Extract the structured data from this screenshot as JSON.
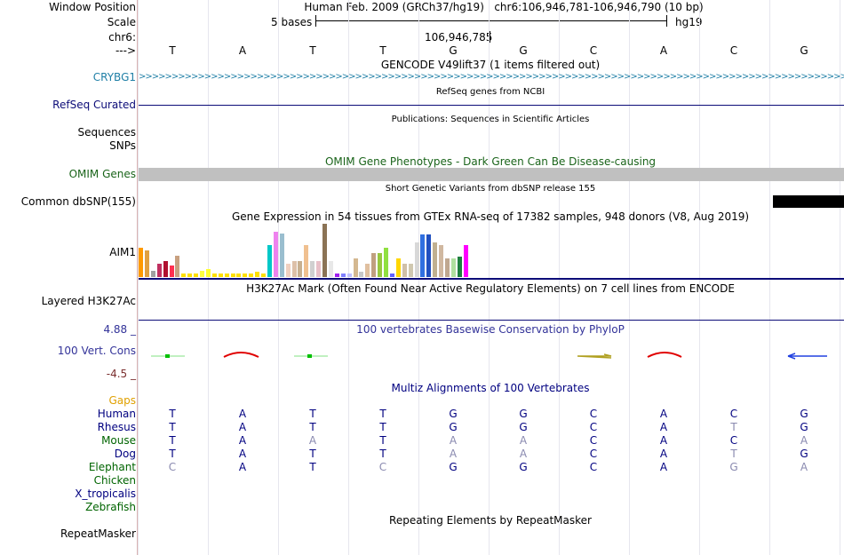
{
  "header": {
    "window_position_label": "Window Position",
    "window_position_value": "Human Feb. 2009 (GRCh37/hg19)   chr6:106,946,781-106,946,790 (10 bp)",
    "scale_label": "Scale",
    "scale_value": "5 bases",
    "scale_db": "hg19",
    "chrom_label": "chr6:",
    "coordinate": "106,946,785",
    "strand_label": "--->"
  },
  "bases": [
    "T",
    "A",
    "T",
    "T",
    "G",
    "G",
    "C",
    "A",
    "C",
    "G"
  ],
  "tracks": {
    "gencode": {
      "title": "GENCODE V49lift37 (1 items filtered out)",
      "label": "CRYBG1",
      "color": "#1f7fa6"
    },
    "refseq": {
      "title": "RefSeq genes from NCBI",
      "label": "RefSeq Curated",
      "color": "#0c0c78"
    },
    "publications": {
      "title": "Publications: Sequences in Scientific Articles",
      "label1": "Sequences",
      "label2": "SNPs"
    },
    "omim": {
      "title": "OMIM Gene Phenotypes - Dark Green Can Be Disease-causing",
      "label": "OMIM Genes",
      "color": "#1a641a"
    },
    "dbsnp": {
      "title": "Short Genetic Variants from dbSNP release 155",
      "label": "Common dbSNP(155)"
    },
    "gtex": {
      "title": "Gene Expression in 54 tissues from GTEx RNA-seq of 17382 samples, 948 donors (V8, Aug 2019)",
      "label": "AIM1",
      "values": [
        0.55,
        0.5,
        0.12,
        0.25,
        0.3,
        0.22,
        0.4,
        0.06,
        0.06,
        0.06,
        0.12,
        0.15,
        0.06,
        0.06,
        0.06,
        0.06,
        0.06,
        0.06,
        0.06,
        0.1,
        0.06,
        0.6,
        0.85,
        0.82,
        0.25,
        0.3,
        0.3,
        0.6,
        0.3,
        0.3,
        1.0,
        0.3,
        0.06,
        0.06,
        0.06,
        0.35,
        0.1,
        0.25,
        0.45,
        0.45,
        0.55,
        0.06,
        0.35,
        0.25,
        0.25,
        0.65,
        0.8,
        0.8,
        0.65,
        0.6,
        0.35,
        0.35,
        0.38,
        0.6
      ],
      "colors": [
        "#ff9a00",
        "#e0a040",
        "#a0a0a0",
        "#c03060",
        "#b01030",
        "#ff3050",
        "#c8a080",
        "#ffe000",
        "#ffe000",
        "#ffe000",
        "#ffff40",
        "#ffff30",
        "#ffe000",
        "#ffe000",
        "#ffe000",
        "#ffe000",
        "#ffe000",
        "#ffe000",
        "#ffe000",
        "#ffe000",
        "#ffe000",
        "#00c8c8",
        "#ee82ee",
        "#9abecf",
        "#f0d0c0",
        "#ddc0a8",
        "#c8b090",
        "#f0c090",
        "#d0d0d0",
        "#e8c0c8",
        "#8b7355",
        "#e8e8e8",
        "#a020f0",
        "#8080ff",
        "#c0c0ff",
        "#d4b890",
        "#c8c8c8",
        "#e0c0a0",
        "#c0a080",
        "#98c840",
        "#90e040",
        "#6060ff",
        "#ffd700",
        "#d0c0a8",
        "#d0c8b0",
        "#d8d8d8",
        "#3070e0",
        "#2050c0",
        "#c0b090",
        "#d0b8a0",
        "#c0a890",
        "#b0e0a0",
        "#208040",
        "#ff00ff"
      ]
    },
    "h3k27ac": {
      "title": "H3K27Ac Mark (Often Found Near Active Regulatory Elements) on 7 cell lines from ENCODE",
      "label": "Layered H3K27Ac"
    },
    "cons": {
      "title": "100 vertebrates Basewise Conservation by PhyloP",
      "label": "100 Vert. Cons",
      "max": "4.88 _",
      "min": "-4.5 _",
      "color": "#333399",
      "min_color": "#7a2e2e"
    },
    "multiz": {
      "title": "Multiz Alignments of 100 Vertebrates",
      "gaps_label": "Gaps",
      "gaps_color": "#e0a000",
      "species": [
        {
          "name": "Human",
          "color": "#000080",
          "bases": [
            "T",
            "A",
            "T",
            "T",
            "G",
            "G",
            "C",
            "A",
            "C",
            "G"
          ]
        },
        {
          "name": "Rhesus",
          "color": "#000080",
          "bases": [
            "T",
            "A",
            "T",
            "T",
            "G",
            "G",
            "C",
            "A",
            "T",
            "G"
          ]
        },
        {
          "name": "Mouse",
          "color": "#006400",
          "bases": [
            "T",
            "A",
            "A",
            "T",
            "A",
            "A",
            "C",
            "A",
            "C",
            "A"
          ]
        },
        {
          "name": "Dog",
          "color": "#000080",
          "bases": [
            "T",
            "A",
            "T",
            "T",
            "A",
            "A",
            "C",
            "A",
            "T",
            "G"
          ]
        },
        {
          "name": "Elephant",
          "color": "#006400",
          "bases": [
            "C",
            "A",
            "T",
            "C",
            "G",
            "G",
            "C",
            "A",
            "G",
            "A"
          ]
        },
        {
          "name": "Chicken",
          "color": "#006400",
          "bases": []
        },
        {
          "name": "X_tropicalis",
          "color": "#000080",
          "bases": []
        },
        {
          "name": "Zebrafish",
          "color": "#006400",
          "bases": []
        }
      ]
    },
    "rmsk": {
      "title": "Repeating Elements by RepeatMasker",
      "label": "RepeatMasker"
    }
  }
}
